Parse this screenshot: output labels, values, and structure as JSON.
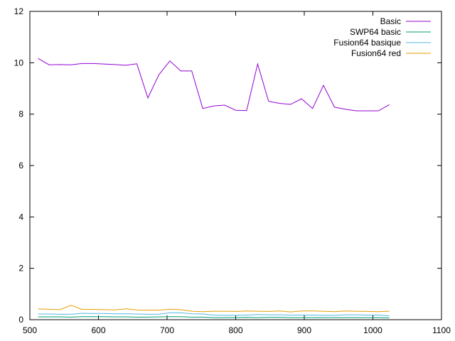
{
  "chart_data": {
    "type": "line",
    "title": "",
    "xlabel": "",
    "ylabel": "",
    "xlim": [
      500,
      1100
    ],
    "ylim": [
      0,
      12
    ],
    "x_ticks": [
      500,
      600,
      700,
      800,
      900,
      1000,
      1100
    ],
    "y_ticks": [
      0,
      2,
      4,
      6,
      8,
      10,
      12
    ],
    "grid": false,
    "legend_position": "top-right",
    "x": [
      512,
      528,
      544,
      560,
      576,
      592,
      608,
      624,
      640,
      656,
      672,
      688,
      704,
      720,
      736,
      752,
      768,
      784,
      800,
      816,
      832,
      848,
      864,
      880,
      896,
      912,
      928,
      944,
      960,
      976,
      992,
      1008,
      1024
    ],
    "series": [
      {
        "name": "Basic",
        "color": "#9400d3",
        "values": [
          10.17,
          9.92,
          9.93,
          9.92,
          9.97,
          9.97,
          9.95,
          9.93,
          9.9,
          9.96,
          8.63,
          9.53,
          10.07,
          9.68,
          9.68,
          8.22,
          8.32,
          8.35,
          8.15,
          8.14,
          9.95,
          8.5,
          8.42,
          8.38,
          8.6,
          8.22,
          9.12,
          8.27,
          8.19,
          8.13,
          8.13,
          8.13,
          8.37
        ]
      },
      {
        "name": "SWP64 basic",
        "color": "#009e73",
        "values": [
          0.11,
          0.11,
          0.11,
          0.1,
          0.12,
          0.12,
          0.12,
          0.11,
          0.11,
          0.1,
          0.1,
          0.11,
          0.12,
          0.12,
          0.1,
          0.1,
          0.08,
          0.08,
          0.08,
          0.09,
          0.08,
          0.09,
          0.09,
          0.08,
          0.08,
          0.08,
          0.08,
          0.08,
          0.08,
          0.08,
          0.08,
          0.08,
          0.07
        ]
      },
      {
        "name": "Fusion64 basique",
        "color": "#56b4e9",
        "values": [
          0.22,
          0.22,
          0.21,
          0.21,
          0.25,
          0.24,
          0.24,
          0.23,
          0.23,
          0.22,
          0.21,
          0.21,
          0.27,
          0.27,
          0.23,
          0.22,
          0.18,
          0.17,
          0.17,
          0.18,
          0.2,
          0.19,
          0.19,
          0.18,
          0.18,
          0.18,
          0.17,
          0.17,
          0.19,
          0.19,
          0.18,
          0.18,
          0.15
        ]
      },
      {
        "name": "Fusion64 red",
        "color": "#e69f00",
        "values": [
          0.42,
          0.4,
          0.39,
          0.56,
          0.4,
          0.4,
          0.39,
          0.38,
          0.42,
          0.38,
          0.37,
          0.37,
          0.41,
          0.39,
          0.33,
          0.31,
          0.33,
          0.33,
          0.32,
          0.34,
          0.33,
          0.32,
          0.34,
          0.3,
          0.34,
          0.34,
          0.33,
          0.31,
          0.34,
          0.33,
          0.32,
          0.31,
          0.33
        ]
      }
    ]
  }
}
